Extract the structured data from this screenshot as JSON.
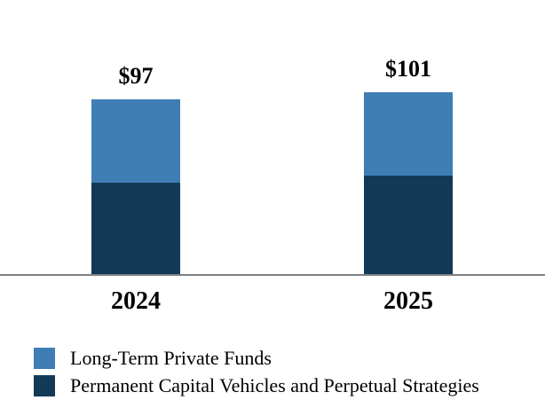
{
  "chart_data": {
    "type": "bar",
    "stacked": true,
    "title": "",
    "xlabel": "",
    "ylabel": "",
    "grid": false,
    "y_axis_visible": false,
    "legend_position": "bottom-left",
    "axis_line_color": "#808080",
    "categories": [
      "2024",
      "2025"
    ],
    "series": [
      {
        "name": "Long-Term Private Funds",
        "color": "#3F7DB5",
        "values": [
          46,
          46
        ]
      },
      {
        "name": "Permanent Capital Vehicles and Perpetual Strategies",
        "color": "#123A57",
        "values": [
          51,
          55
        ]
      }
    ],
    "totals": [
      97,
      101
    ],
    "total_labels": [
      "$97",
      "$101"
    ]
  }
}
